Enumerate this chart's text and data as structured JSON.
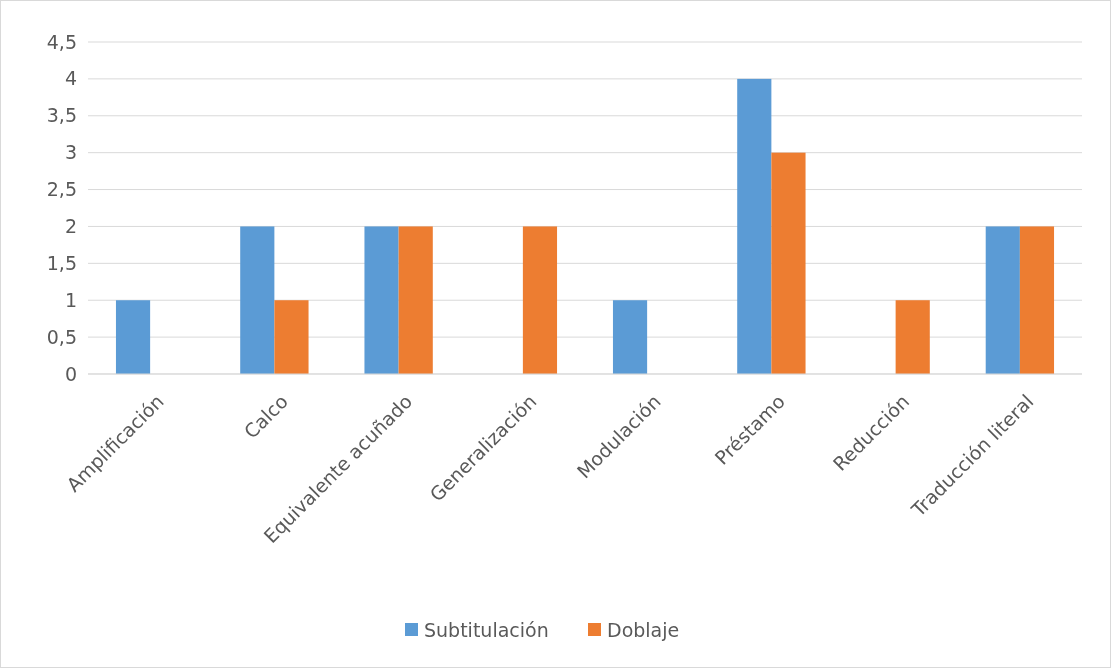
{
  "chart_data": {
    "type": "bar",
    "categories": [
      "Amplificación",
      "Calco",
      "Equivalente acuñado",
      "Generalización",
      "Modulación",
      "Préstamo",
      "Reducción",
      "Traducción literal"
    ],
    "series": [
      {
        "name": "Subtitulación",
        "color": "#5b9bd5",
        "values": [
          1,
          2,
          2,
          0,
          1,
          4,
          0,
          2
        ]
      },
      {
        "name": "Doblaje",
        "color": "#ed7d31",
        "values": [
          0,
          1,
          2,
          2,
          0,
          3,
          1,
          2
        ]
      }
    ],
    "ylim": [
      0,
      4.5
    ],
    "yticks": [
      0,
      {
        "value": 0.5,
        "label": "0,5"
      },
      1,
      {
        "value": 1.5,
        "label": "1,5"
      },
      2,
      {
        "value": 2.5,
        "label": "2,5"
      },
      3,
      {
        "value": 3.5,
        "label": "3,5"
      },
      4,
      {
        "value": 4.5,
        "label": "4,5"
      }
    ],
    "grid": "y",
    "legend": "bottom"
  }
}
